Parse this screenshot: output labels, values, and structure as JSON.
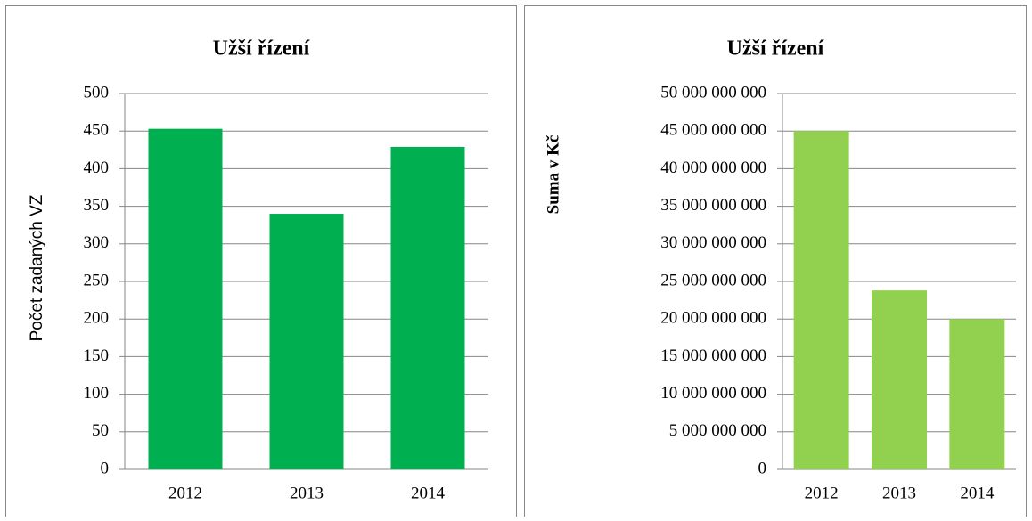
{
  "chart_data": [
    {
      "type": "bar",
      "title": "Užší řízení",
      "y_label": "Počet zadaných VZ",
      "categories": [
        "2012",
        "2013",
        "2014"
      ],
      "values": [
        453,
        340,
        429
      ],
      "color": "#00b050",
      "ylim": [
        0,
        500
      ],
      "yticks": [
        0,
        50,
        100,
        150,
        200,
        250,
        300,
        350,
        400,
        450,
        500
      ],
      "grid": true
    },
    {
      "type": "bar",
      "title": "Užší řízení",
      "y_label": "Suma v Kč",
      "categories": [
        "2012",
        "2013",
        "2014"
      ],
      "values": [
        45000000000,
        23800000000,
        20000000000
      ],
      "color": "#92d050",
      "ylim": [
        0,
        50000000000
      ],
      "yticks": [
        0,
        {
          "value": 5000000000,
          "label": "5 000 000 000"
        },
        {
          "value": 10000000000,
          "label": "10 000 000 000"
        },
        {
          "value": 15000000000,
          "label": "15 000 000 000"
        },
        {
          "value": 20000000000,
          "label": "20 000 000 000"
        },
        {
          "value": 25000000000,
          "label": "25 000 000 000"
        },
        {
          "value": 30000000000,
          "label": "30 000 000 000"
        },
        {
          "value": 35000000000,
          "label": "35 000 000 000"
        },
        {
          "value": 40000000000,
          "label": "40 000 000 000"
        },
        {
          "value": 45000000000,
          "label": "45 000 000 000"
        },
        {
          "value": 50000000000,
          "label": "50 000 000 000"
        }
      ],
      "grid": true
    }
  ]
}
